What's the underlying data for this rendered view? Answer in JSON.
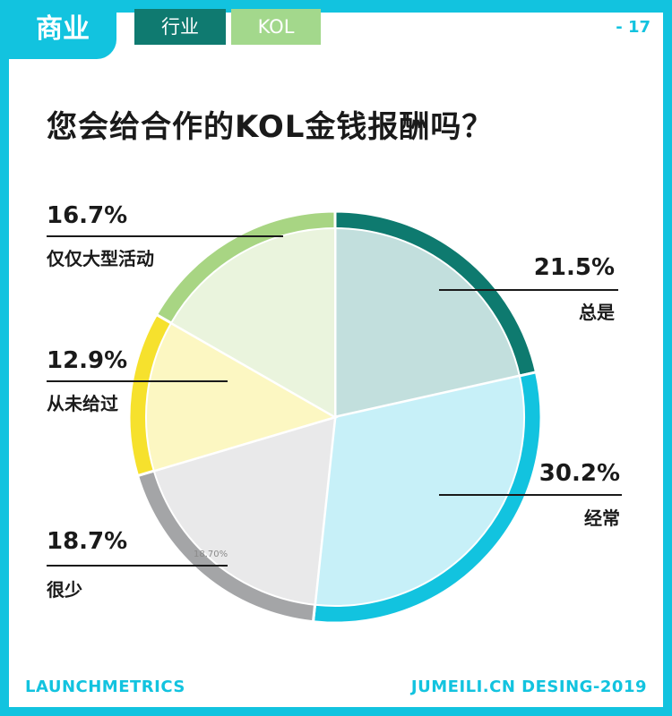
{
  "header": {
    "tab_main": "商业",
    "tab_industry": "行业",
    "tab_kol": "KOL",
    "page_number": "- 17"
  },
  "colors": {
    "accent": "#12c3df",
    "dark_teal": "#0f7a70",
    "light_green": "#a3d88c"
  },
  "chart_data": {
    "type": "pie",
    "title": "您会给合作的KOL金钱报酬吗？",
    "series": [
      {
        "name": "总是",
        "value": 21.5,
        "label": "21.5%",
        "ring_color": "#0e7a6f",
        "fill_color": "#c2dfdd"
      },
      {
        "name": "经常",
        "value": 30.2,
        "label": "30.2%",
        "ring_color": "#12c3df",
        "fill_color": "#c7f0f8"
      },
      {
        "name": "很少",
        "value": 18.7,
        "label": "18.7%",
        "ring_color": "#a4a5a7",
        "fill_color": "#e9e9ea"
      },
      {
        "name": "从未给过",
        "value": 12.9,
        "label": "12.9%",
        "ring_color": "#f6e12d",
        "fill_color": "#fcf7c2"
      },
      {
        "name": "仅仅大型活动",
        "value": 16.7,
        "label": "16.7%",
        "ring_color": "#a8d583",
        "fill_color": "#eaf4dd"
      }
    ],
    "small_slice_label": "18.70%"
  },
  "footer": {
    "left": "LAUNCHMETRICS",
    "right": "JUMEILI.CN DESING-2019"
  }
}
